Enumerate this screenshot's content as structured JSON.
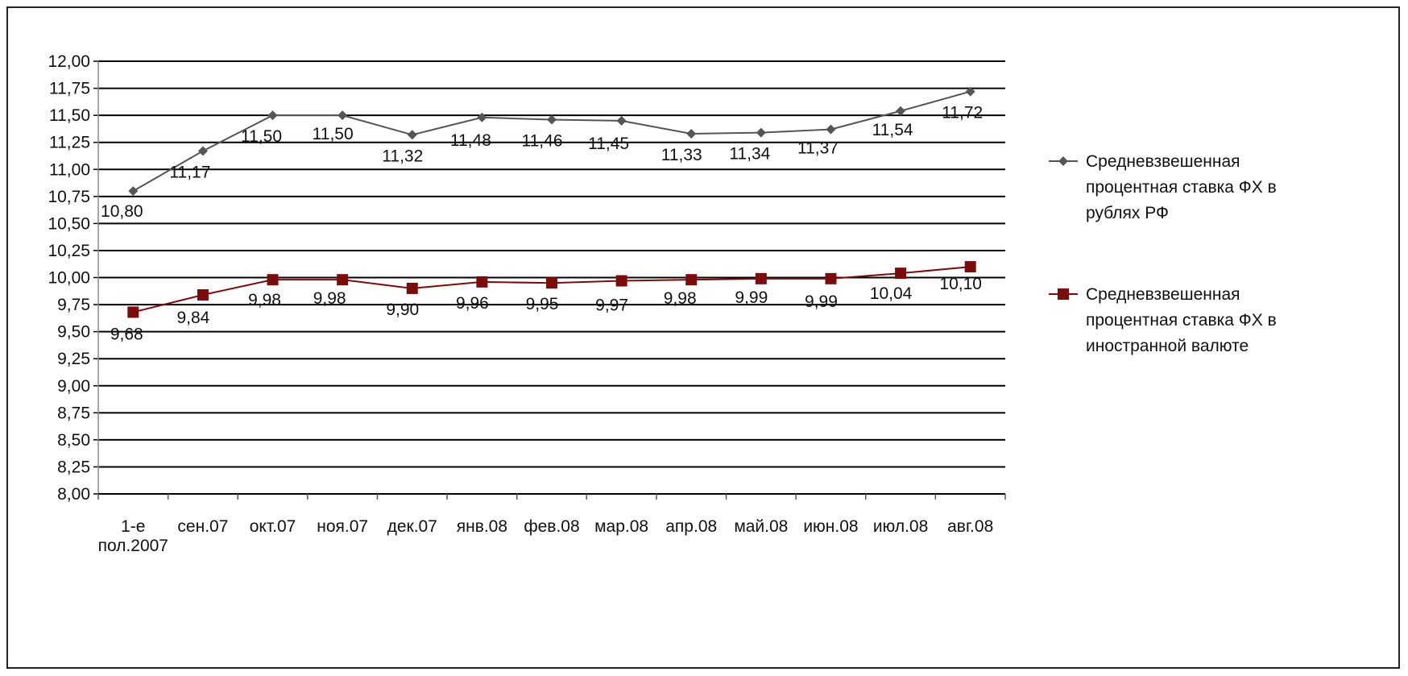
{
  "chart_data": {
    "type": "line",
    "title": "",
    "xlabel": "",
    "ylabel": "",
    "categories": [
      [
        "1-е",
        "пол.2007"
      ],
      [
        "сен.07"
      ],
      [
        "окт.07"
      ],
      [
        "ноя.07"
      ],
      [
        "дек.07"
      ],
      [
        "янв.08"
      ],
      [
        "фев.08"
      ],
      [
        "мар.08"
      ],
      [
        "апр.08"
      ],
      [
        "май.08"
      ],
      [
        "июн.08"
      ],
      [
        "июл.08"
      ],
      [
        "авг.08"
      ]
    ],
    "ylim": [
      8.0,
      12.0
    ],
    "ytick_step": 0.25,
    "ytick_labels": [
      "8,00",
      "8,25",
      "8,50",
      "8,75",
      "9,00",
      "9,25",
      "9,50",
      "9,75",
      "10,00",
      "10,25",
      "10,50",
      "10,75",
      "11,00",
      "11,25",
      "11,50",
      "11,75",
      "12,00"
    ],
    "grid": "horizontal",
    "legend_position": "right",
    "series": [
      {
        "name": [
          "Средневзвешенная",
          "процентная ставка ФХ в",
          "рублях РФ"
        ],
        "marker": "diamond",
        "color": "#555555",
        "values": [
          10.8,
          11.17,
          11.5,
          11.5,
          11.32,
          11.48,
          11.46,
          11.45,
          11.33,
          11.34,
          11.37,
          11.54,
          11.72
        ],
        "labels": [
          "10,80",
          "11,17",
          "11,50",
          "11,50",
          "11,32",
          "11,48",
          "11,46",
          "11,45",
          "11,33",
          "11,34",
          "11,37",
          "11,54",
          "11,72"
        ]
      },
      {
        "name": [
          "Средневзвешенная",
          "процентная ставка ФХ в",
          "иностранной валюте"
        ],
        "marker": "square",
        "color": "#7a0c0c",
        "values": [
          9.68,
          9.84,
          9.98,
          9.98,
          9.9,
          9.96,
          9.95,
          9.97,
          9.98,
          9.99,
          9.99,
          10.04,
          10.1
        ],
        "labels": [
          "9,68",
          "9,84",
          "9,98",
          "9,98",
          "9,90",
          "9,96",
          "9,95",
          "9,97",
          "9,98",
          "9,99",
          "9,99",
          "10,04",
          "10,10"
        ]
      }
    ]
  }
}
